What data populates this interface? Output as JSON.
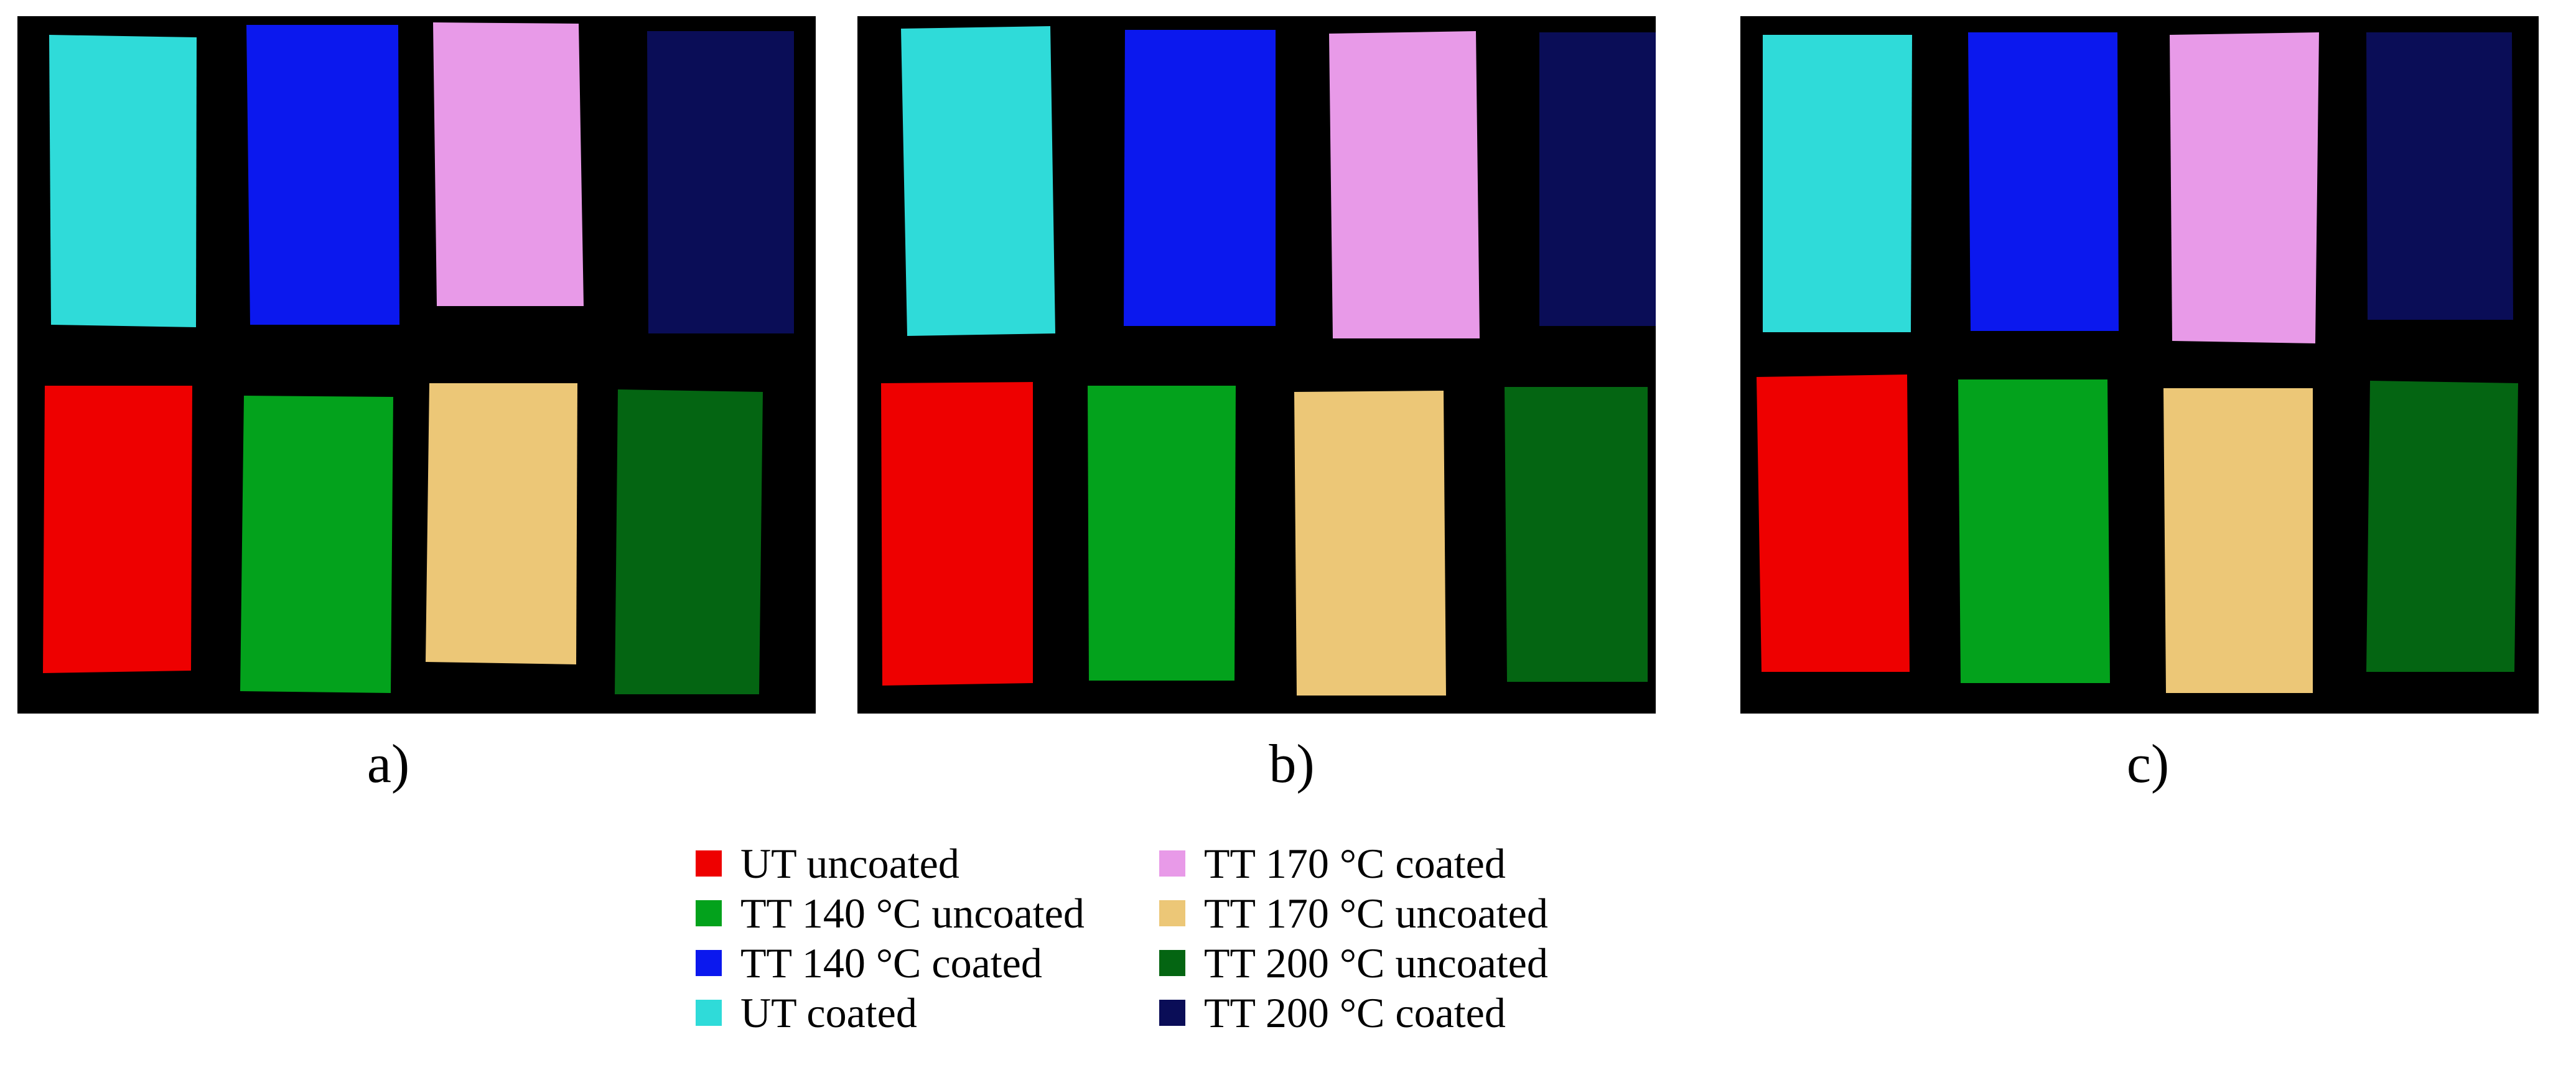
{
  "colors": {
    "ut_uncoated": "#ee0000",
    "tt140_uncoated": "#03a21c",
    "tt140_coated": "#0b18ee",
    "ut_coated": "#2fdbd9",
    "tt170_coated": "#e89ae8",
    "tt170_uncoated": "#ecc777",
    "tt200_uncoated": "#046512",
    "tt200_coated": "#0a0d57"
  },
  "panels": [
    {
      "label": "a)"
    },
    {
      "label": "b)"
    },
    {
      "label": "c)"
    }
  ],
  "legend": {
    "column1": [
      {
        "label": "UT uncoated",
        "color": "#ee0000"
      },
      {
        "label": "TT 140 °C uncoated",
        "color": "#03a21c"
      },
      {
        "label": "TT 140 °C coated",
        "color": "#0b18ee"
      },
      {
        "label": "UT coated",
        "color": "#2fdbd9"
      }
    ],
    "column2": [
      {
        "label": "TT 170 °C coated",
        "color": "#e89ae8"
      },
      {
        "label": "TT 170 °C uncoated",
        "color": "#ecc777"
      },
      {
        "label": "TT 200 °C uncoated",
        "color": "#046512"
      },
      {
        "label": "TT 200 °C coated",
        "color": "#0a0d57"
      }
    ]
  }
}
